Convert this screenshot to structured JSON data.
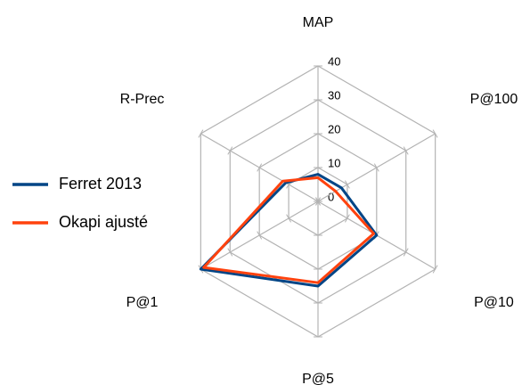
{
  "chart_data": {
    "type": "radar",
    "categories": [
      "MAP",
      "P@100",
      "P@10",
      "P@5",
      "P@1",
      "R-Prec"
    ],
    "series": [
      {
        "name": "Ferret 2013",
        "color": "#004586",
        "values": [
          8,
          8,
          20,
          25,
          40,
          11
        ]
      },
      {
        "name": "Okapi ajusté",
        "color": "#ff420e",
        "values": [
          7,
          6,
          19,
          24,
          39,
          12
        ]
      }
    ],
    "ylim": [
      0,
      40
    ],
    "yticks": [
      0,
      10,
      20,
      30,
      40
    ],
    "grid": true,
    "legend": "left"
  }
}
